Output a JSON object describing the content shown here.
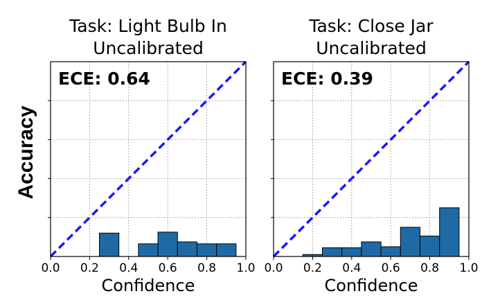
{
  "figure": {
    "ylabel": "Accuracy"
  },
  "colors": {
    "bar_fill": "#1f6aa5",
    "bar_edge": "#000000",
    "diagonal": "#1a1aff",
    "grid": "#9a9a9a"
  },
  "chart_data": [
    {
      "type": "bar",
      "title_line1": "Task: Light Bulb In",
      "title_line2": "Uncalibrated",
      "annotation": "ECE: 0.64",
      "xlabel": "Confidence",
      "ylabel": "Accuracy",
      "xlim": [
        0.0,
        1.0
      ],
      "ylim": [
        0.0,
        1.0
      ],
      "xticks": [
        "0.0",
        "0.2",
        "0.4",
        "0.6",
        "0.8",
        "1.0"
      ],
      "grid": true,
      "bins": [
        {
          "center": 0.3,
          "value": 0.12
        },
        {
          "center": 0.5,
          "value": 0.065
        },
        {
          "center": 0.6,
          "value": 0.125
        },
        {
          "center": 0.7,
          "value": 0.075
        },
        {
          "center": 0.8,
          "value": 0.065
        },
        {
          "center": 0.9,
          "value": 0.065
        }
      ],
      "bin_width": 0.1,
      "diagonal": {
        "from": [
          0.0,
          0.0
        ],
        "to": [
          1.0,
          1.0
        ],
        "style": "dashed"
      }
    },
    {
      "type": "bar",
      "title_line1": "Task: Close Jar",
      "title_line2": "Uncalibrated",
      "annotation": "ECE: 0.39",
      "xlabel": "Confidence",
      "ylabel": "Accuracy",
      "xlim": [
        0.0,
        1.0
      ],
      "ylim": [
        0.0,
        1.0
      ],
      "xticks": [
        "0.0",
        "0.2",
        "0.4",
        "0.6",
        "0.8",
        "1.0"
      ],
      "grid": true,
      "bins": [
        {
          "center": 0.2,
          "value": 0.01
        },
        {
          "center": 0.3,
          "value": 0.045
        },
        {
          "center": 0.4,
          "value": 0.045
        },
        {
          "center": 0.5,
          "value": 0.075
        },
        {
          "center": 0.6,
          "value": 0.05
        },
        {
          "center": 0.7,
          "value": 0.15
        },
        {
          "center": 0.8,
          "value": 0.105
        },
        {
          "center": 0.9,
          "value": 0.25
        }
      ],
      "bin_width": 0.1,
      "diagonal": {
        "from": [
          0.0,
          0.0
        ],
        "to": [
          1.0,
          1.0
        ],
        "style": "dashed"
      }
    }
  ]
}
